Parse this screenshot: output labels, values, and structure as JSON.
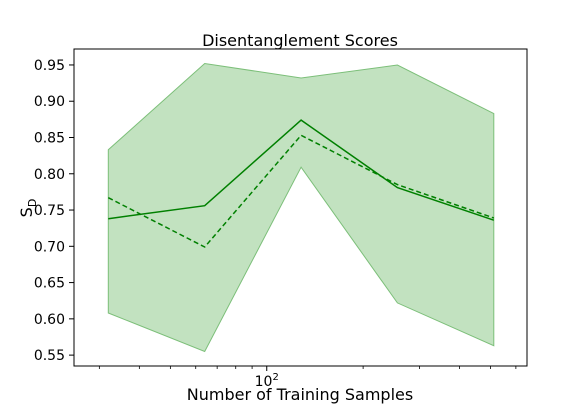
{
  "chart_data": {
    "type": "line",
    "title": "Disentanglement Scores",
    "xlabel": "Number of Training Samples",
    "ylabel_main": "S",
    "ylabel_sub": "D",
    "x_scale": "log",
    "xlim": [
      25,
      650
    ],
    "ylim": [
      0.535,
      0.972
    ],
    "x_major_ticks": [
      {
        "value": 100,
        "base": "10",
        "exp": "2"
      }
    ],
    "x_minor_ticks": [
      30,
      40,
      50,
      60,
      70,
      80,
      90,
      200,
      300,
      400,
      500,
      600
    ],
    "y_ticks": [
      0.55,
      0.6,
      0.65,
      0.7,
      0.75,
      0.8,
      0.85,
      0.9,
      0.95
    ],
    "y_tick_labels": [
      "0.55",
      "0.60",
      "0.65",
      "0.70",
      "0.75",
      "0.80",
      "0.85",
      "0.90",
      "0.95"
    ],
    "grid": false,
    "colors": {
      "line": "#008000",
      "band_fill": "#8fca8c",
      "band_edge": "#7cbf79",
      "axes": "#000000"
    },
    "x": [
      32,
      64,
      128,
      256,
      512
    ],
    "series": [
      {
        "style": "solid",
        "values": [
          0.738,
          0.756,
          0.874,
          0.781,
          0.736
        ]
      },
      {
        "style": "dashed",
        "values": [
          0.767,
          0.699,
          0.853,
          0.785,
          0.739
        ]
      }
    ],
    "band": {
      "upper": [
        0.833,
        0.952,
        0.932,
        0.95,
        0.883
      ],
      "lower": [
        0.608,
        0.555,
        0.809,
        0.622,
        0.563
      ]
    }
  }
}
